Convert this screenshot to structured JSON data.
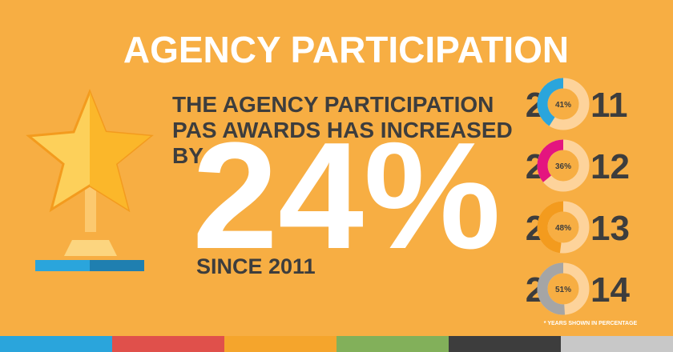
{
  "title": "AGENCY PARTICIPATION",
  "statement": {
    "lines": [
      "THE  AGENCY PARTICIPATION",
      "PAS AWARDS HAS INCREASED",
      "BY"
    ],
    "big": "24%",
    "since": "SINCE 2011"
  },
  "years": [
    {
      "prefix": "2",
      "suffix": "11",
      "value": 41,
      "label": "41%",
      "color": "#2aa5dc"
    },
    {
      "prefix": "2",
      "suffix": "12",
      "value": 36,
      "label": "36%",
      "color": "#e4157f"
    },
    {
      "prefix": "2",
      "suffix": "13",
      "value": 48,
      "label": "48%",
      "color": "#f39b1e"
    },
    {
      "prefix": "2",
      "suffix": "14",
      "value": 51,
      "label": "51%",
      "color": "#a5a5a5"
    }
  ],
  "footnote": "* YEARS SHOWN IN PERCENTAGE"
}
